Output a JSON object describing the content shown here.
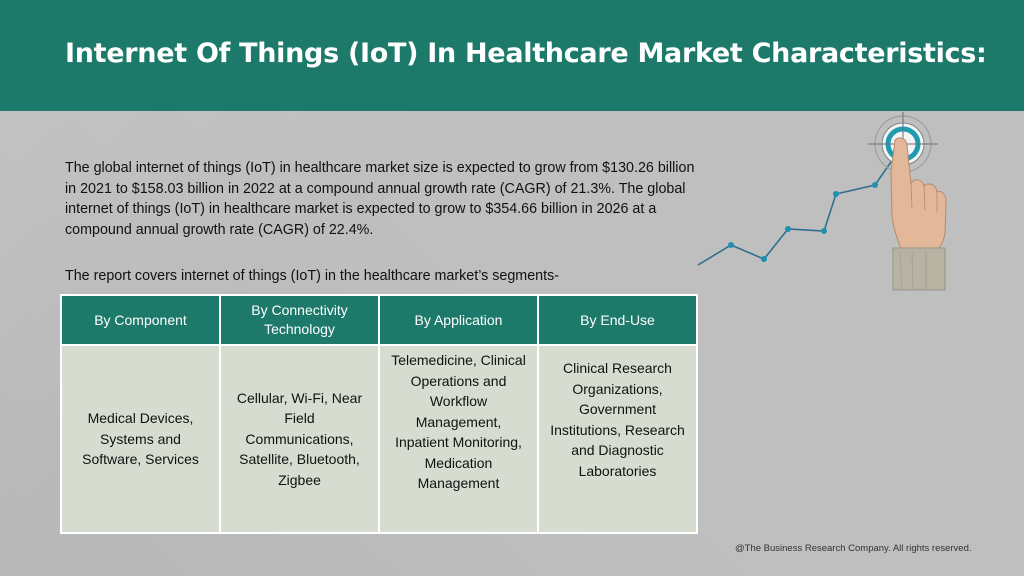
{
  "header": {
    "title": "Internet Of Things (IoT) In Healthcare Market Characteristics:"
  },
  "body": {
    "description": "The global internet of things (IoT) in healthcare market size is expected to grow from $130.26 billion in 2021 to $158.03 billion in 2022 at a compound annual growth rate (CAGR) of 21.3%. The global internet of things (IoT) in healthcare market is expected to grow to $354.66 billion in 2026 at a compound annual growth rate (CAGR) of 22.4%.",
    "report_line": "The report covers internet of things (IoT) in the healthcare market’s segments-"
  },
  "segments": {
    "headers": [
      "By Component",
      "By Connectivity Technology",
      "By Application",
      "By End-Use"
    ],
    "cells": [
      "Medical Devices, Systems and Software, Services",
      "Cellular, Wi-Fi, Near Field Communications, Satellite, Bluetooth, Zigbee",
      "Telemedicine, Clinical Operations and Workflow Management, Inpatient Monitoring, Medication Management",
      "Clinical Research Organizations, Government Institutions, Research and Diagnostic Laboratories"
    ]
  },
  "colors": {
    "brand_teal": "#1d7a6b",
    "cell_fill": "#d6ddd0",
    "line_blue": "#2f6f8f",
    "target_teal": "#1f9bb0"
  },
  "icons": {
    "graphic": "hand-touching-target-growth-line-icon"
  },
  "footer": {
    "copyright": "@The Business Research Company. All rights reserved."
  }
}
